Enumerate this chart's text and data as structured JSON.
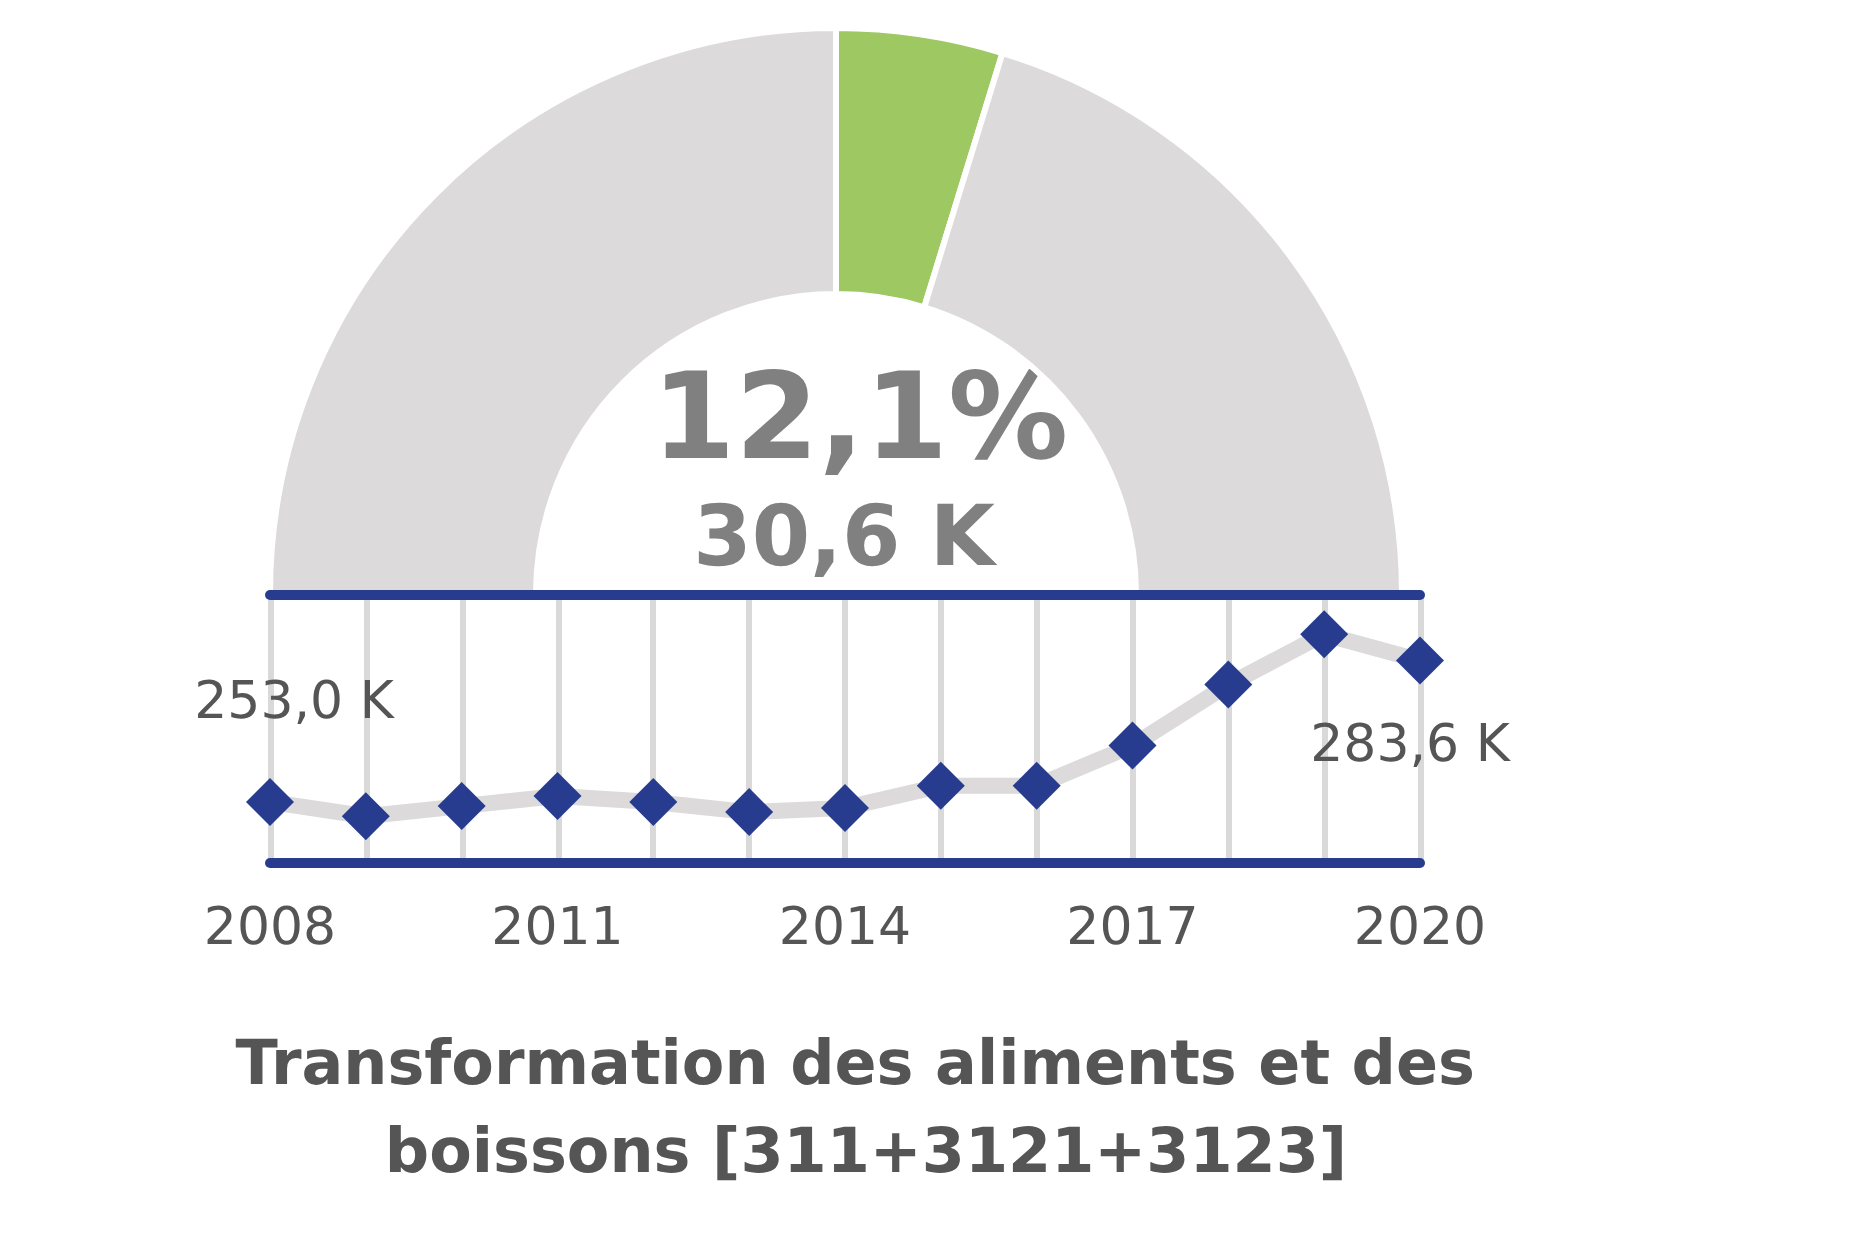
{
  "chart_data": [
    {
      "type": "donut",
      "categories": [
        null,
        null,
        null
      ],
      "values": [
        50,
        9.5,
        40.5
      ],
      "colors": [
        "#dcdadb",
        "#9dc862",
        "#dcdadb"
      ],
      "annotations": [
        "12,1%",
        "30,6 K"
      ]
    },
    {
      "type": "line",
      "title": "Transformation des aliments et des boissons [311+3121+3123]",
      "categories": [
        "2008",
        null,
        null,
        "2011",
        null,
        null,
        "2014",
        null,
        null,
        "2017",
        null,
        null,
        "2020"
      ],
      "ylim": [
        240,
        298
      ],
      "tick_labels": "x",
      "marker": "diamond",
      "grid": "x",
      "series": [
        {
          "color": "#273c8f",
          "values": [
            253.0,
            249.9,
            252.1,
            254.3,
            253.0,
            250.8,
            251.7,
            256.5,
            256.5,
            265.2,
            278.4,
            289.3,
            283.6
          ],
          "value_labels": [
            "253,0 K",
            null,
            null,
            null,
            null,
            null,
            null,
            null,
            null,
            null,
            null,
            null,
            "283,6 K"
          ]
        }
      ]
    }
  ]
}
